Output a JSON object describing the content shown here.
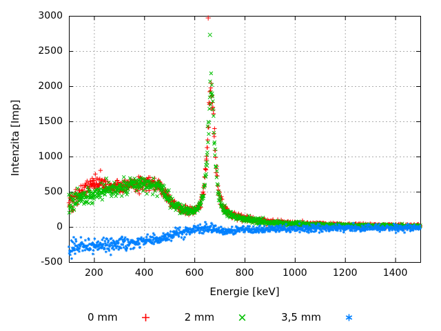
{
  "page": {
    "background": "#ffffff"
  },
  "chart_data": {
    "type": "scatter",
    "title": "",
    "xlabel": "Energie [keV]",
    "ylabel": "Intenzita [Imp]",
    "xlim": [
      100,
      1500
    ],
    "ylim": [
      -500,
      3000
    ],
    "xticks": [
      200,
      400,
      600,
      800,
      1000,
      1200,
      1400
    ],
    "yticks": [
      -500,
      0,
      500,
      1000,
      1500,
      2000,
      2500,
      3000
    ],
    "grid": "on-dashed",
    "grid_color": "#ababab",
    "frame_color": "#000000",
    "legend_position": "bottom-center",
    "profile_format": "each profile entry is [energy_keV, mean_intensity_Imp, noise_sigma_Imp]; the plotted spectrum is ~1024 channels per series scattered about these means (gamma spectrum, Cs-137 photopeak at 662 keV)",
    "series": [
      {
        "name": "0 mm",
        "marker": "plus",
        "color": "#ff0000",
        "outliers": [
          [
            655,
            2970
          ],
          [
            648,
            940
          ]
        ],
        "profile": [
          [
            100,
            330,
            70
          ],
          [
            130,
            420,
            65
          ],
          [
            160,
            520,
            60
          ],
          [
            190,
            600,
            55
          ],
          [
            215,
            640,
            55
          ],
          [
            240,
            620,
            50
          ],
          [
            270,
            575,
            50
          ],
          [
            300,
            570,
            48
          ],
          [
            340,
            590,
            48
          ],
          [
            380,
            610,
            48
          ],
          [
            425,
            630,
            48
          ],
          [
            455,
            595,
            45
          ],
          [
            475,
            515,
            42
          ],
          [
            495,
            420,
            40
          ],
          [
            515,
            340,
            36
          ],
          [
            545,
            265,
            32
          ],
          [
            575,
            230,
            30
          ],
          [
            595,
            228,
            30
          ],
          [
            612,
            265,
            32
          ],
          [
            625,
            345,
            36
          ],
          [
            636,
            500,
            48
          ],
          [
            645,
            780,
            65
          ],
          [
            652,
            1180,
            95
          ],
          [
            657,
            1620,
            115
          ],
          [
            662,
            1990,
            125
          ],
          [
            667,
            2010,
            125
          ],
          [
            672,
            1860,
            115
          ],
          [
            678,
            1430,
            100
          ],
          [
            684,
            980,
            80
          ],
          [
            692,
            610,
            58
          ],
          [
            702,
            395,
            45
          ],
          [
            714,
            290,
            36
          ],
          [
            728,
            232,
            30
          ],
          [
            745,
            192,
            28
          ],
          [
            765,
            160,
            25
          ],
          [
            795,
            132,
            22
          ],
          [
            835,
            103,
            20
          ],
          [
            885,
            78,
            18
          ],
          [
            950,
            58,
            16
          ],
          [
            1030,
            44,
            15
          ],
          [
            1120,
            34,
            14
          ],
          [
            1220,
            27,
            13
          ],
          [
            1320,
            22,
            12
          ],
          [
            1420,
            18,
            12
          ],
          [
            1500,
            15,
            12
          ]
        ]
      },
      {
        "name": "2 mm",
        "marker": "cross",
        "color": "#00c000",
        "outliers": [
          [
            662,
            2730
          ],
          [
            650,
            870
          ]
        ],
        "profile": [
          [
            100,
            320,
            70
          ],
          [
            140,
            400,
            65
          ],
          [
            180,
            460,
            62
          ],
          [
            220,
            495,
            60
          ],
          [
            260,
            520,
            58
          ],
          [
            300,
            545,
            56
          ],
          [
            340,
            572,
            55
          ],
          [
            380,
            598,
            55
          ],
          [
            425,
            618,
            55
          ],
          [
            455,
            585,
            50
          ],
          [
            475,
            505,
            45
          ],
          [
            495,
            412,
            40
          ],
          [
            515,
            332,
            37
          ],
          [
            545,
            258,
            32
          ],
          [
            575,
            224,
            30
          ],
          [
            595,
            222,
            30
          ],
          [
            612,
            258,
            32
          ],
          [
            625,
            335,
            36
          ],
          [
            636,
            480,
            48
          ],
          [
            645,
            750,
            65
          ],
          [
            652,
            1130,
            95
          ],
          [
            657,
            1560,
            112
          ],
          [
            662,
            1900,
            118
          ],
          [
            667,
            1920,
            118
          ],
          [
            672,
            1780,
            110
          ],
          [
            678,
            1360,
            95
          ],
          [
            684,
            930,
            75
          ],
          [
            692,
            580,
            55
          ],
          [
            702,
            372,
            42
          ],
          [
            714,
            272,
            34
          ],
          [
            728,
            215,
            29
          ],
          [
            745,
            178,
            26
          ],
          [
            765,
            148,
            24
          ],
          [
            795,
            120,
            21
          ],
          [
            835,
            92,
            19
          ],
          [
            885,
            68,
            17
          ],
          [
            950,
            50,
            15
          ],
          [
            1030,
            38,
            13
          ],
          [
            1120,
            28,
            12
          ],
          [
            1220,
            21,
            11
          ],
          [
            1320,
            16,
            10
          ],
          [
            1420,
            13,
            10
          ],
          [
            1500,
            11,
            10
          ]
        ]
      },
      {
        "name": "3,5 mm",
        "marker": "asterisk",
        "color": "#0080ff",
        "outliers": [],
        "profile": [
          [
            100,
            -290,
            60
          ],
          [
            150,
            -278,
            56
          ],
          [
            200,
            -262,
            52
          ],
          [
            250,
            -248,
            47
          ],
          [
            300,
            -238,
            45
          ],
          [
            350,
            -228,
            43
          ],
          [
            400,
            -210,
            41
          ],
          [
            435,
            -188,
            39
          ],
          [
            470,
            -155,
            37
          ],
          [
            505,
            -115,
            35
          ],
          [
            540,
            -80,
            33
          ],
          [
            575,
            -55,
            31
          ],
          [
            605,
            -38,
            29
          ],
          [
            630,
            -26,
            27
          ],
          [
            655,
            -20,
            26
          ],
          [
            672,
            -28,
            26
          ],
          [
            690,
            -48,
            26
          ],
          [
            710,
            -56,
            26
          ],
          [
            740,
            -52,
            25
          ],
          [
            790,
            -44,
            25
          ],
          [
            860,
            -36,
            24
          ],
          [
            950,
            -30,
            24
          ],
          [
            1050,
            -25,
            24
          ],
          [
            1150,
            -21,
            23
          ],
          [
            1250,
            -17,
            23
          ],
          [
            1350,
            -14,
            23
          ],
          [
            1450,
            -11,
            23
          ],
          [
            1500,
            -10,
            23
          ]
        ]
      }
    ]
  }
}
